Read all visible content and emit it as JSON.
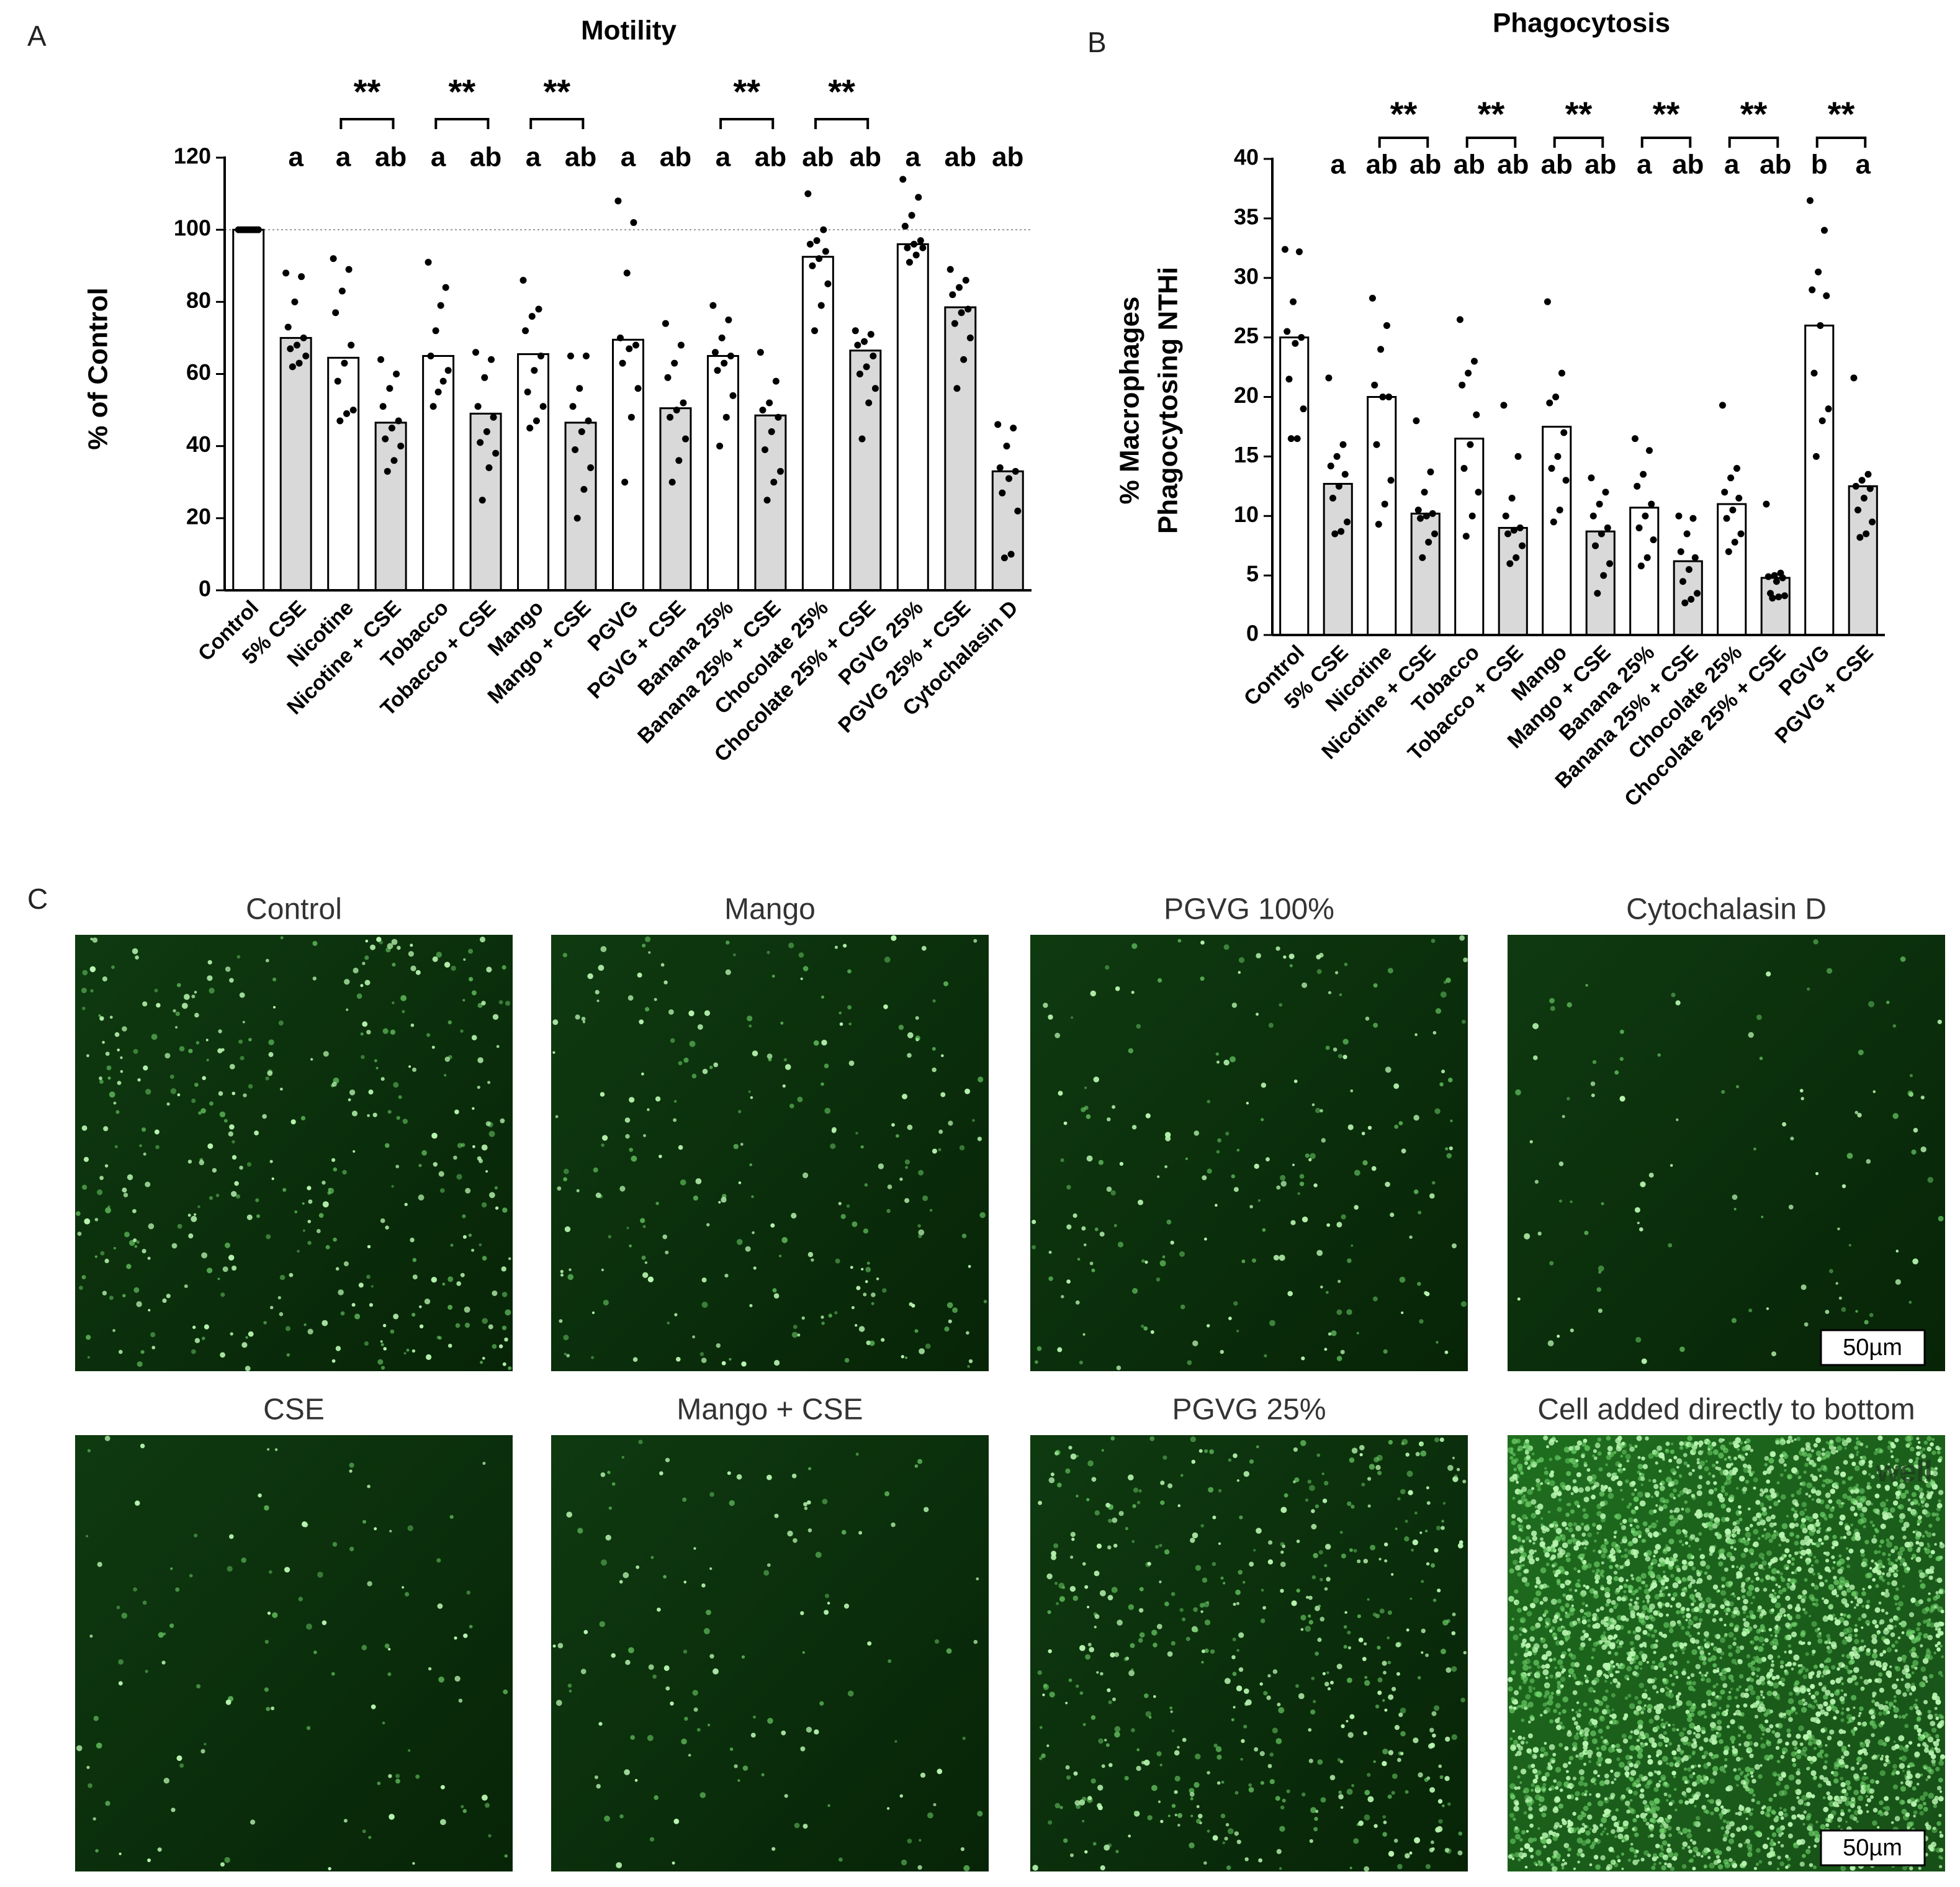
{
  "panel_labels": [
    "A",
    "B",
    "C"
  ],
  "chart_data": [
    {
      "type": "bar",
      "title": "Motility",
      "y_label": [
        "% of Control"
      ],
      "categories": [
        "Control",
        "5% CSE",
        "Nicotine",
        "Nicotine + CSE",
        "Tobacco",
        "Tobacco + CSE",
        "Mango",
        "Mango + CSE",
        "PGVG",
        "PGVG + CSE",
        "Banana 25%",
        "Banana 25% + CSE",
        "Chocolate 25%",
        "Chocolate 25% + CSE",
        "PGVG 25%",
        "PGVG 25% + CSE",
        "Cytochalasin D"
      ],
      "values": [
        100,
        70,
        64.5,
        46.5,
        65,
        49,
        65.5,
        46.5,
        69.5,
        50.5,
        65,
        48.5,
        92.5,
        66.5,
        96,
        78.5,
        33
      ],
      "colors": [
        "#ffffff",
        "#d9d9d9",
        "#ffffff",
        "#d9d9d9",
        "#ffffff",
        "#d9d9d9",
        "#ffffff",
        "#d9d9d9",
        "#ffffff",
        "#d9d9d9",
        "#ffffff",
        "#d9d9d9",
        "#ffffff",
        "#d9d9d9",
        "#ffffff",
        "#d9d9d9",
        "#d9d9d9"
      ],
      "points": [
        [
          100,
          100,
          100,
          100,
          100,
          100,
          100,
          100,
          100,
          100
        ],
        [
          88,
          87,
          80,
          73,
          70,
          68,
          67,
          65,
          63,
          62
        ],
        [
          92,
          89,
          83,
          77,
          68,
          63,
          58,
          50,
          49,
          47
        ],
        [
          64,
          60,
          56,
          51,
          47,
          45,
          42,
          40,
          36,
          33
        ],
        [
          91,
          84,
          79,
          72,
          65,
          61,
          58,
          55,
          51
        ],
        [
          66,
          64,
          59,
          51,
          48,
          44,
          41,
          38,
          34,
          25
        ],
        [
          86,
          78,
          76,
          72,
          65,
          61,
          55,
          51,
          47,
          45
        ],
        [
          65,
          65,
          56,
          51,
          47,
          44,
          39,
          34,
          28,
          20
        ],
        [
          108,
          102,
          88,
          70,
          68,
          67,
          63,
          56,
          48,
          30
        ],
        [
          74,
          68,
          63,
          59,
          52,
          50,
          48,
          42,
          36,
          30
        ],
        [
          79,
          75,
          70,
          66,
          65,
          63,
          61,
          54,
          48,
          40
        ],
        [
          66,
          58,
          52,
          50,
          48,
          44,
          39,
          33,
          30,
          25
        ],
        [
          110,
          100,
          97,
          96,
          94,
          92,
          90,
          85,
          79,
          72
        ],
        [
          72,
          71,
          69,
          68,
          65,
          62,
          60,
          56,
          52,
          42
        ],
        [
          114,
          109,
          104,
          101,
          97,
          96,
          95,
          95,
          93,
          91
        ],
        [
          89,
          86,
          84,
          82,
          78,
          77,
          74,
          70,
          64,
          56
        ],
        [
          46,
          45,
          40,
          34,
          33,
          31,
          27,
          22,
          10,
          9
        ]
      ],
      "letters": [
        null,
        "a",
        "a",
        "ab",
        "a",
        "ab",
        "a",
        "ab",
        "a",
        "ab",
        "a",
        "ab",
        "ab",
        "ab",
        "a",
        "ab",
        "ab"
      ],
      "brackets": [
        {
          "from": "Nicotine",
          "to": "Nicotine + CSE",
          "label": "**"
        },
        {
          "from": "Tobacco",
          "to": "Tobacco + CSE",
          "label": "**"
        },
        {
          "from": "Mango",
          "to": "Mango + CSE",
          "label": "**"
        },
        {
          "from": "Banana 25%",
          "to": "Banana 25% + CSE",
          "label": "**"
        },
        {
          "from": "Chocolate 25%",
          "to": "Chocolate 25% + CSE",
          "label": "**"
        }
      ],
      "reference_line": 100,
      "ylim": [
        0,
        120
      ],
      "yticks": [
        0,
        20,
        40,
        60,
        80,
        100,
        120
      ]
    },
    {
      "type": "bar",
      "title": "Phagocytosis",
      "y_label": [
        "% Macrophages",
        "Phagocytosing NTHi"
      ],
      "categories": [
        "Control",
        "5% CSE",
        "Nicotine",
        "Nicotine + CSE",
        "Tobacco",
        "Tobacco + CSE",
        "Mango",
        "Mango + CSE",
        "Banana 25%",
        "Banana 25% + CSE",
        "Chocolate 25%",
        "Chocolate 25% + CSE",
        "PGVG",
        "PGVG + CSE"
      ],
      "values": [
        25,
        12.7,
        20,
        10.2,
        16.5,
        9,
        17.5,
        8.7,
        10.7,
        6.2,
        11,
        4.8,
        26,
        12.5
      ],
      "colors": [
        "#ffffff",
        "#d9d9d9",
        "#ffffff",
        "#d9d9d9",
        "#ffffff",
        "#d9d9d9",
        "#ffffff",
        "#d9d9d9",
        "#ffffff",
        "#d9d9d9",
        "#ffffff",
        "#d9d9d9",
        "#ffffff",
        "#d9d9d9"
      ],
      "points": [
        [
          32.4,
          32.2,
          28,
          25.5,
          25,
          24.5,
          21.5,
          19,
          16.5,
          16.5
        ],
        [
          21.6,
          16,
          15,
          14.2,
          13.5,
          12.5,
          11.5,
          9.5,
          8.7,
          8.5
        ],
        [
          28.3,
          26,
          24,
          21,
          20,
          20,
          16,
          13,
          11,
          9.3
        ],
        [
          18,
          13.7,
          12,
          10.5,
          10.2,
          10,
          9.8,
          8.5,
          7.8,
          6.5
        ],
        [
          26.5,
          23,
          22,
          21,
          18.5,
          16,
          14,
          12,
          10,
          8.3
        ],
        [
          19.3,
          15,
          11.5,
          10,
          9,
          8.8,
          8.5,
          7.5,
          6.5,
          6
        ],
        [
          28,
          22,
          20,
          19.5,
          17,
          15,
          14,
          13,
          10.5,
          9.5
        ],
        [
          13.2,
          12,
          11,
          10,
          9,
          8.5,
          7.5,
          6,
          5,
          3.5
        ],
        [
          16.5,
          15.5,
          13.5,
          12.5,
          11,
          10,
          9,
          8,
          6.5,
          5.8
        ],
        [
          10,
          9.8,
          8.5,
          7,
          6.5,
          5.5,
          4.5,
          3.5,
          3,
          2.7
        ],
        [
          19.3,
          14,
          13.2,
          12,
          11.5,
          10.5,
          9.8,
          8.5,
          7.8,
          7
        ],
        [
          11,
          5.2,
          5,
          4.9,
          4.8,
          4.5,
          3.5,
          3.3,
          3.2,
          3.1
        ],
        [
          36.5,
          34,
          30.5,
          29,
          28.5,
          26,
          22,
          19,
          18,
          15
        ],
        [
          21.6,
          13.5,
          13,
          12.5,
          12.3,
          11.5,
          10.5,
          9.5,
          8.5,
          8.2
        ]
      ],
      "letters": [
        null,
        "a",
        "ab",
        "ab",
        "ab",
        "ab",
        "ab",
        "ab",
        "a",
        "ab",
        "a",
        "ab",
        "b",
        "a"
      ],
      "brackets": [
        {
          "from": "Nicotine",
          "to": "Nicotine + CSE",
          "label": "**"
        },
        {
          "from": "Tobacco",
          "to": "Tobacco + CSE",
          "label": "**"
        },
        {
          "from": "Mango",
          "to": "Mango + CSE",
          "label": "**"
        },
        {
          "from": "Banana 25%",
          "to": "Banana 25% + CSE",
          "label": "**"
        },
        {
          "from": "Chocolate 25%",
          "to": "Chocolate 25% + CSE",
          "label": "**"
        },
        {
          "from": "PGVG",
          "to": "PGVG + CSE",
          "label": "**"
        }
      ],
      "ylim": [
        0,
        40
      ],
      "yticks": [
        0,
        5,
        10,
        15,
        20,
        25,
        30,
        35,
        40
      ]
    }
  ],
  "images": {
    "titles": [
      "Control",
      "Mango",
      "PGVG 100%",
      "Cytochalasin D",
      "CSE",
      "Mango + CSE",
      "PGVG 25%",
      "Cell added directly to bottom"
    ],
    "overlay_text": "well",
    "scale_bar": "50µm"
  }
}
